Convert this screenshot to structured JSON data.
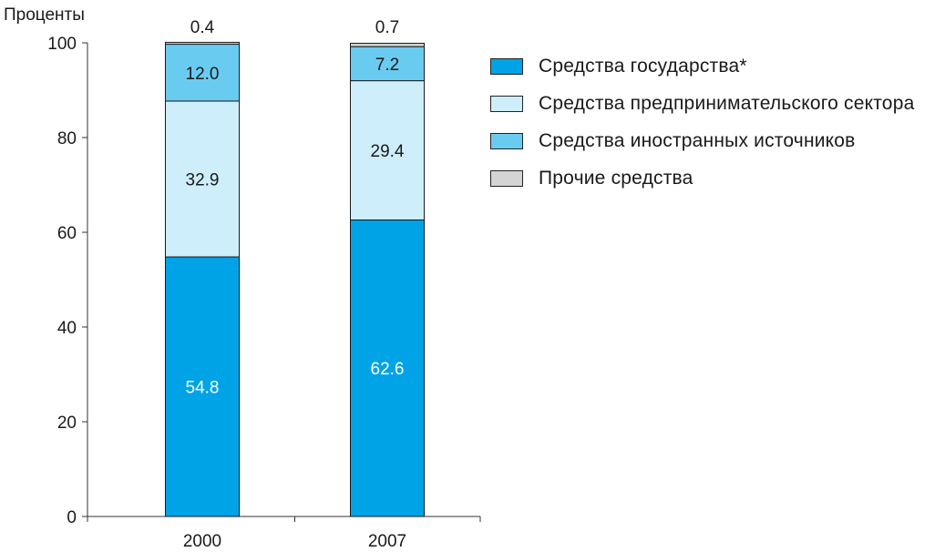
{
  "chart_data": {
    "type": "bar",
    "stacked": true,
    "ylabel": "Проценты",
    "ylim": [
      0,
      100
    ],
    "yticks": [
      0,
      20,
      40,
      60,
      80,
      100
    ],
    "categories": [
      "2000",
      "2007"
    ],
    "series": [
      {
        "name": "Средства государства*",
        "color": "#00a3e6",
        "label_color": "#ffffff",
        "values": [
          54.8,
          62.6
        ]
      },
      {
        "name": "Средства предпринимательского сектора",
        "color": "#cfeefb",
        "label_color": "#1a1a1a",
        "values": [
          32.9,
          29.4
        ]
      },
      {
        "name": "Средства иностранных источников",
        "color": "#6acbf1",
        "label_color": "#1a1a1a",
        "values": [
          12.0,
          7.2
        ]
      },
      {
        "name": "Прочие средства",
        "color": "#d4d4d4",
        "label_color": "#1a1a1a",
        "values": [
          0.4,
          0.7
        ],
        "label_position": "above"
      }
    ],
    "grid": false,
    "legend_position": "right"
  }
}
